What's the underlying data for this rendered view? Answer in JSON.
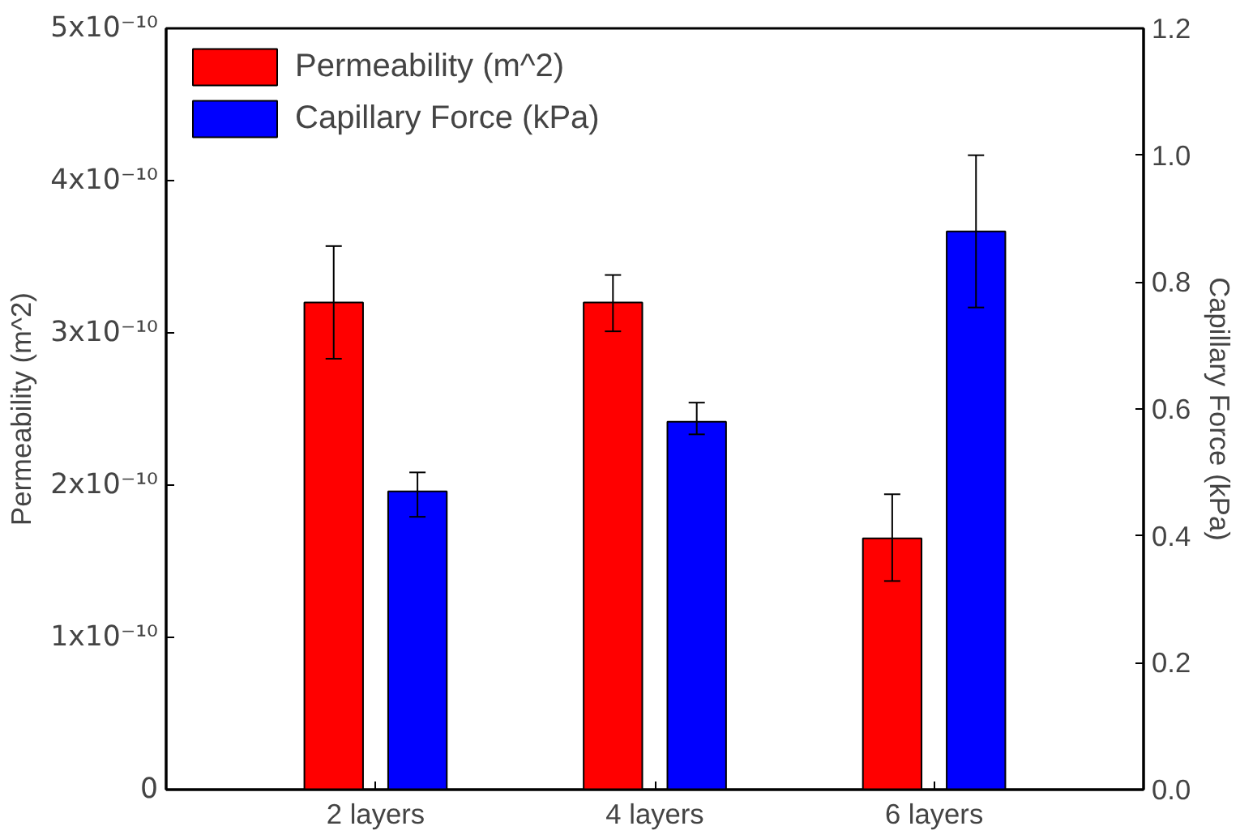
{
  "chart_data": {
    "type": "bar",
    "categories": [
      "2 layers",
      "4 layers",
      "6 layers"
    ],
    "ylabel": "Permeability (m^2)",
    "y2label": "Capillary Force (kPa)",
    "ylim": [
      0,
      5e-10
    ],
    "yticks": [
      0,
      {
        "value": 1e-10,
        "label": "1x10⁻¹⁰"
      },
      {
        "value": 2e-10,
        "label": "2x10⁻¹⁰"
      },
      {
        "value": 3e-10,
        "label": "3x10⁻¹⁰"
      },
      {
        "value": 4e-10,
        "label": "4x10⁻¹⁰"
      },
      {
        "value": 5e-10,
        "label": "5x10⁻¹⁰"
      }
    ],
    "y2lim": [
      0,
      1.2
    ],
    "y2ticks": [
      {
        "value": 0,
        "label": "0.0"
      },
      0.2,
      0.4,
      0.6,
      0.8,
      {
        "value": 1,
        "label": "1.0"
      },
      1.2
    ],
    "series": [
      {
        "name": "Permeability (m^2)",
        "color": "#ff0000",
        "values": [
          3.2e-10,
          3.2e-10,
          1.65e-10
        ],
        "errors": [
          [
            2.83e-10,
            3.57e-10
          ],
          [
            3.01e-10,
            3.38e-10
          ],
          [
            1.37e-10,
            1.94e-10
          ]
        ]
      },
      {
        "name": "Capillary Force (kPa)",
        "color": "#0000ff",
        "axis": "y2",
        "values": [
          0.47,
          0.58,
          0.88
        ],
        "errors": [
          [
            0.43,
            0.5
          ],
          [
            0.56,
            0.61
          ],
          [
            0.76,
            1.0
          ]
        ]
      }
    ],
    "legend": "top left",
    "grid": false
  }
}
